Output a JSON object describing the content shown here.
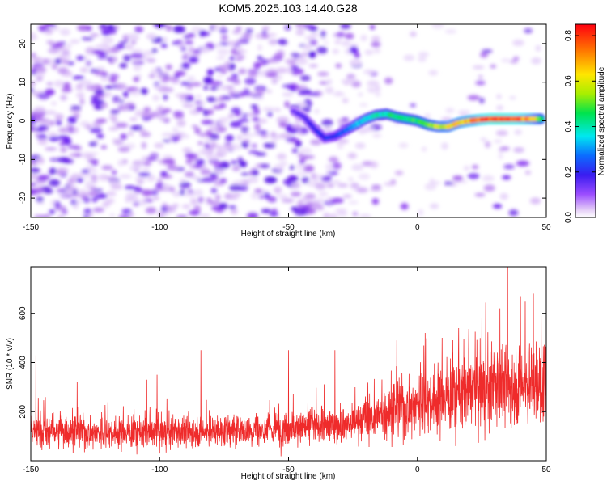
{
  "figure": {
    "title": "KOM5.2025.103.14.40.G28"
  },
  "chart_data": [
    {
      "type": "heatmap",
      "xlabel": "Height of straight line (km)",
      "ylabel": "Frequency (Hz)",
      "xlim": [
        -150,
        50
      ],
      "ylim": [
        -25,
        25
      ],
      "xticks": [
        -150,
        -100,
        -50,
        0,
        50
      ],
      "yticks": [
        -20,
        -10,
        0,
        10,
        20
      ],
      "colorbar": {
        "label": "Normalized spectral amplitude",
        "range": [
          0,
          0.85
        ],
        "ticks": [
          "0.0",
          "0.2",
          "0.4",
          "0.6",
          "0.8"
        ],
        "colormap": "rainbow (light purple, violet, blue, cyan, green, yellow, orange, red)"
      },
      "ridge": {
        "description": "frequency of strongest spectral amplitude vs height",
        "x": [
          -48,
          -44,
          -40,
          -36,
          -32,
          -28,
          -24,
          -20,
          -16,
          -12,
          -8,
          -4,
          0,
          4,
          8,
          12,
          16,
          20,
          24,
          28,
          32,
          36,
          40,
          44,
          48
        ],
        "freq": [
          2.5,
          1.0,
          -2.0,
          -4.5,
          -4.0,
          -2.5,
          -1.0,
          0.5,
          1.5,
          1.8,
          1.0,
          0.5,
          0.0,
          -1.0,
          -1.5,
          -1.5,
          -0.5,
          0.0,
          0.3,
          0.5,
          0.5,
          0.5,
          0.5,
          0.5,
          0.5
        ],
        "amplitude": [
          0.15,
          0.15,
          0.18,
          0.2,
          0.22,
          0.25,
          0.3,
          0.35,
          0.38,
          0.4,
          0.45,
          0.45,
          0.45,
          0.5,
          0.55,
          0.6,
          0.65,
          0.7,
          0.75,
          0.8,
          0.82,
          0.8,
          0.78,
          0.7,
          0.5
        ]
      },
      "background": "scattered low-amplitude patches (about 0.02 to 0.15), densest for heights below -40 km"
    },
    {
      "type": "line",
      "xlabel": "Height of straight line (km)",
      "ylabel": "SNR (10 * v/v)",
      "xlim": [
        -150,
        50
      ],
      "ylim": [
        0,
        790
      ],
      "xticks": [
        -150,
        -100,
        -50,
        0,
        50
      ],
      "yticks": [
        200,
        400,
        600
      ],
      "color": "#ef2b2b",
      "trend": {
        "x": [
          -150,
          -125,
          -100,
          -75,
          -50,
          -25,
          -10,
          0,
          10,
          20,
          30,
          40,
          50
        ],
        "y": [
          120,
          115,
          115,
          120,
          130,
          150,
          200,
          230,
          260,
          280,
          300,
          310,
          320
        ]
      },
      "peaks": [
        {
          "x": -148,
          "y": 430
        },
        {
          "x": -132,
          "y": 320
        },
        {
          "x": -105,
          "y": 330
        },
        {
          "x": -101,
          "y": 350
        },
        {
          "x": -84,
          "y": 450
        },
        {
          "x": -50,
          "y": 450
        },
        {
          "x": -32,
          "y": 450
        },
        {
          "x": -8,
          "y": 490
        },
        {
          "x": 3,
          "y": 520
        },
        {
          "x": 16,
          "y": 540
        },
        {
          "x": 25,
          "y": 580
        },
        {
          "x": 32,
          "y": 620
        },
        {
          "x": 35,
          "y": 790
        },
        {
          "x": 40,
          "y": 670
        },
        {
          "x": 45,
          "y": 680
        },
        {
          "x": 48,
          "y": 590
        },
        {
          "x": 50,
          "y": 580
        }
      ]
    }
  ]
}
